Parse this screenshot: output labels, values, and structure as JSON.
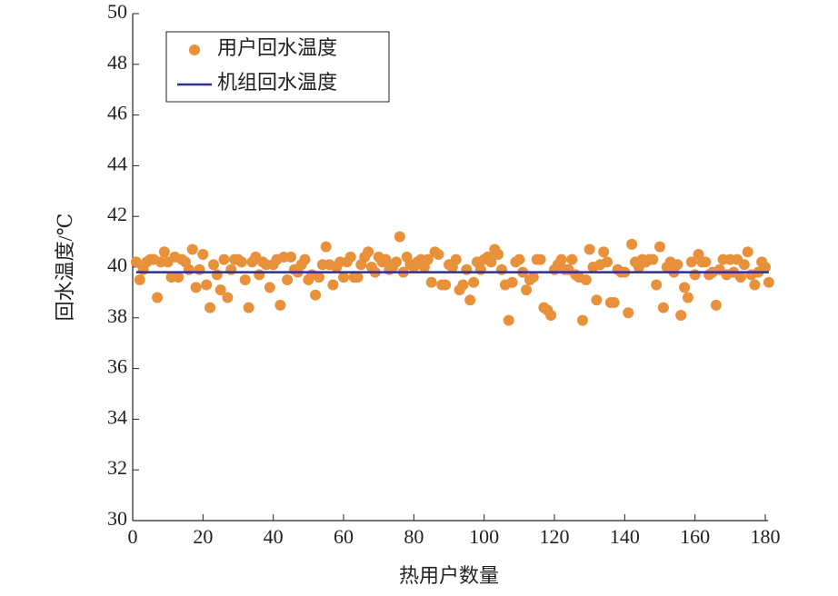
{
  "chart_data": {
    "type": "scatter",
    "xlabel": "热用户数量",
    "ylabel": "回水温度/℃",
    "xlim": [
      0,
      180
    ],
    "xticks": [
      0,
      20,
      40,
      60,
      80,
      100,
      120,
      140,
      160,
      180
    ],
    "ylim": [
      30,
      50
    ],
    "yticks": [
      30,
      32,
      34,
      36,
      38,
      40,
      42,
      44,
      46,
      48,
      50
    ],
    "legend": "upper left",
    "series": [
      {
        "name": "用户回水温度",
        "type": "scatter",
        "color": "#e8913a",
        "x": [
          1,
          2,
          3,
          4,
          5,
          6,
          7,
          8,
          9,
          10,
          11,
          12,
          13,
          14,
          15,
          16,
          17,
          18,
          19,
          20,
          21,
          22,
          23,
          24,
          25,
          26,
          27,
          28,
          29,
          30,
          31,
          32,
          33,
          34,
          35,
          36,
          37,
          38,
          39,
          40,
          41,
          42,
          43,
          44,
          45,
          46,
          47,
          48,
          49,
          50,
          51,
          52,
          53,
          54,
          55,
          56,
          57,
          58,
          59,
          60,
          61,
          62,
          63,
          64,
          65,
          66,
          67,
          68,
          69,
          70,
          71,
          72,
          73,
          74,
          75,
          76,
          77,
          78,
          79,
          80,
          81,
          82,
          83,
          84,
          85,
          86,
          87,
          88,
          89,
          90,
          91,
          92,
          93,
          94,
          95,
          96,
          97,
          98,
          99,
          100,
          101,
          102,
          103,
          104,
          105,
          106,
          107,
          108,
          109,
          110,
          111,
          112,
          113,
          114,
          115,
          116,
          117,
          118,
          119,
          120,
          121,
          122,
          123,
          124,
          125,
          126,
          127,
          128,
          129,
          130,
          131,
          132,
          133,
          134,
          135,
          136,
          137,
          138,
          139,
          140,
          141,
          142,
          143,
          144,
          145,
          146,
          147,
          148,
          149,
          150,
          151,
          152,
          153,
          154,
          155,
          156,
          157,
          158,
          159,
          160,
          161,
          162,
          163,
          164,
          165,
          166,
          167,
          168,
          169,
          170,
          171,
          172,
          173,
          174,
          175,
          176,
          177,
          178,
          179,
          180,
          181
        ],
        "values": [
          40.2,
          39.5,
          39.9,
          40.2,
          40.3,
          40.3,
          38.8,
          40.2,
          40.6,
          40.2,
          39.6,
          40.4,
          39.6,
          40.3,
          40.2,
          39.9,
          40.7,
          39.2,
          39.9,
          40.5,
          39.3,
          38.4,
          40.1,
          39.7,
          39.1,
          40.3,
          38.8,
          39.9,
          40.3,
          40.3,
          40.2,
          39.5,
          38.4,
          40.2,
          40.4,
          39.7,
          40.2,
          40.1,
          39.2,
          40.1,
          40.3,
          38.5,
          40.4,
          39.5,
          40.4,
          39.9,
          39.8,
          40.1,
          40.3,
          39.5,
          39.7,
          38.9,
          39.6,
          40.1,
          40.8,
          40.1,
          39.3,
          40.0,
          40.2,
          39.6,
          40.2,
          40.4,
          39.6,
          39.6,
          40.1,
          40.4,
          40.6,
          40.0,
          39.8,
          40.4,
          40.2,
          40.3,
          39.9,
          40.0,
          40.2,
          41.2,
          39.8,
          40.4,
          40.1,
          40.0,
          40.2,
          40.3,
          40.0,
          40.3,
          39.4,
          40.6,
          40.5,
          39.3,
          39.3,
          40.1,
          40.0,
          40.3,
          39.1,
          39.3,
          39.9,
          38.7,
          39.4,
          40.2,
          39.9,
          40.3,
          40.4,
          40.2,
          40.7,
          40.5,
          39.9,
          39.3,
          37.9,
          39.4,
          40.2,
          40.3,
          39.8,
          39.1,
          39.5,
          39.6,
          40.3,
          40.3,
          38.4,
          38.3,
          38.1,
          39.9,
          40.1,
          40.3,
          39.9,
          39.9,
          40.3,
          39.7,
          39.6,
          37.9,
          39.5,
          40.7,
          40.0,
          38.7,
          40.1,
          40.6,
          40.2,
          38.6,
          38.6,
          39.9,
          39.8,
          39.8,
          38.2,
          40.9,
          40.2,
          40.0,
          40.3,
          40.2,
          40.3,
          40.3,
          39.3,
          40.8,
          38.4,
          40.0,
          40.2,
          39.8,
          40.1,
          38.1,
          39.2,
          38.8,
          40.2,
          39.7,
          40.5,
          40.2,
          40.2,
          39.7,
          39.8,
          38.5,
          39.9,
          40.3,
          39.7,
          40.3,
          39.8,
          40.3,
          39.6,
          40.1,
          40.6,
          39.7,
          39.3,
          39.8,
          40.2,
          40.0,
          39.4
        ]
      },
      {
        "name": "机组回水温度",
        "type": "line",
        "color": "#2e3192",
        "x": [
          1,
          181
        ],
        "values": [
          39.8,
          39.8
        ]
      }
    ]
  }
}
